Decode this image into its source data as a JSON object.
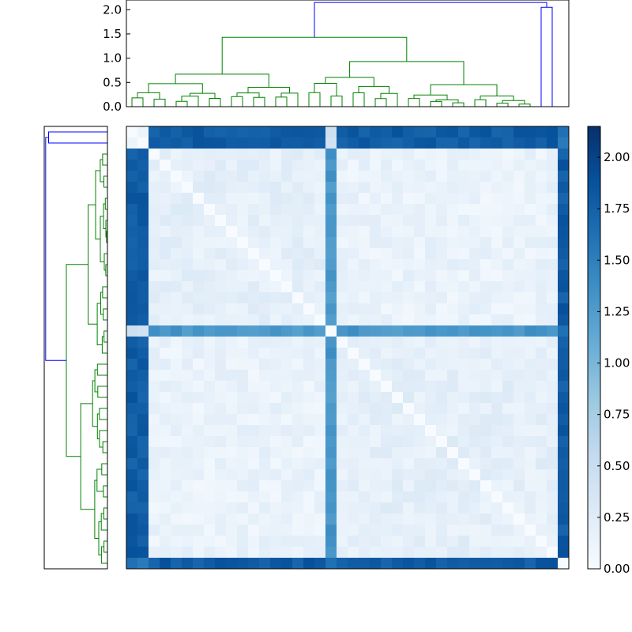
{
  "chart_data": {
    "type": "heatmap",
    "subtype": "clustered-distance-matrix",
    "n": 40,
    "colormap": "Blues",
    "value_range": [
      0,
      2.15
    ],
    "colorbar": {
      "ticks": [
        0.0,
        0.25,
        0.5,
        0.75,
        1.0,
        1.25,
        1.5,
        1.75,
        2.0
      ],
      "tick_labels": [
        "0.00",
        "0.25",
        "0.50",
        "0.75",
        "1.00",
        "1.25",
        "1.50",
        "1.75",
        "2.00"
      ]
    },
    "top_dendrogram": {
      "ylim": [
        0,
        2.2
      ],
      "ticks": [
        0.0,
        0.5,
        1.0,
        1.5,
        2.0
      ],
      "tick_labels": [
        "0.0",
        "0.5",
        "1.0",
        "1.5",
        "2.0"
      ],
      "colors": {
        "cluster": "#008000",
        "above_threshold": "#0000ff"
      }
    },
    "left_dendrogram": {
      "colors": {
        "cluster": "#008000",
        "above_threshold": "#0000ff"
      }
    },
    "groups": {
      "A": {
        "rows": [
          2,
          17
        ],
        "intra_distance": 0.2
      },
      "B": {
        "rows": [
          19,
          38
        ],
        "intra_distance": 0.2
      },
      "C": {
        "rows": [
          0,
          1
        ],
        "intra_distance": 0.05
      },
      "D": {
        "rows": [
          18
        ],
        "intra_distance": 0.0
      }
    },
    "between_distances": {
      "A-B": 0.15,
      "A-D": 1.3,
      "B-D": 1.3,
      "C-A": 1.8,
      "C-B": 1.8,
      "C-D": 0.4
    },
    "last_column_row": 39,
    "merge_heights": {
      "top_root": 2.15,
      "top_second": 2.05,
      "top_green_root": 1.43,
      "top_left_cluster": 0.67,
      "top_right_cluster": 0.93
    }
  }
}
